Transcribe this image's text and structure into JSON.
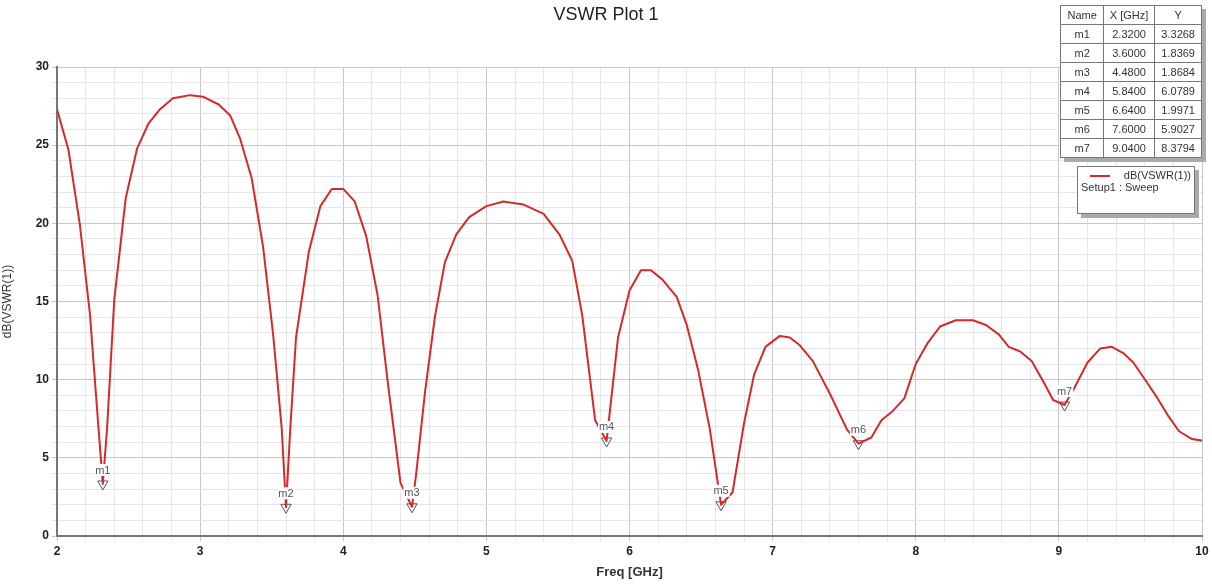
{
  "chart_data": {
    "type": "line",
    "title": "VSWR Plot 1",
    "xlabel": "Freq [GHz]",
    "ylabel": "dB(VSWR(1))",
    "xlim": [
      2,
      10
    ],
    "xticks": [
      2,
      {
        "value": 2.2,
        "label": null
      },
      {
        "value": 2.4,
        "label": null
      },
      {
        "value": 2.6,
        "label": null
      },
      {
        "value": 2.8,
        "label": null
      },
      3,
      {
        "value": 3.2,
        "label": null
      },
      {
        "value": 3.4,
        "label": null
      },
      {
        "value": 3.6,
        "label": null
      },
      {
        "value": 3.8,
        "label": null
      },
      4,
      {
        "value": 4.2,
        "label": null
      },
      {
        "value": 4.4,
        "label": null
      },
      {
        "value": 4.6,
        "label": null
      },
      {
        "value": 4.8,
        "label": null
      },
      5,
      {
        "value": 5.2,
        "label": null
      },
      {
        "value": 5.4,
        "label": null
      },
      {
        "value": 5.6,
        "label": null
      },
      {
        "value": 5.8,
        "label": null
      },
      6,
      {
        "value": 6.2,
        "label": null
      },
      {
        "value": 6.4,
        "label": null
      },
      {
        "value": 6.6,
        "label": null
      },
      {
        "value": 6.8,
        "label": null
      },
      7,
      {
        "value": 7.2,
        "label": null
      },
      {
        "value": 7.4,
        "label": null
      },
      {
        "value": 7.6,
        "label": null
      },
      {
        "value": 7.8,
        "label": null
      },
      8,
      {
        "value": 8.2,
        "label": null
      },
      {
        "value": 8.4,
        "label": null
      },
      {
        "value": 8.6,
        "label": null
      },
      {
        "value": 8.8,
        "label": null
      },
      9,
      {
        "value": 9.2,
        "label": null
      },
      {
        "value": 9.4,
        "label": null
      },
      {
        "value": 9.6,
        "label": null
      },
      {
        "value": 9.8,
        "label": null
      },
      10
    ],
    "ylim": [
      0,
      30
    ],
    "yticks": [
      0,
      {
        "value": 1,
        "label": null
      },
      {
        "value": 2,
        "label": null
      },
      {
        "value": 3,
        "label": null
      },
      {
        "value": 4,
        "label": null
      },
      5,
      {
        "value": 6,
        "label": null
      },
      {
        "value": 7,
        "label": null
      },
      {
        "value": 8,
        "label": null
      },
      {
        "value": 9,
        "label": null
      },
      10,
      {
        "value": 11,
        "label": null
      },
      {
        "value": 12,
        "label": null
      },
      {
        "value": 13,
        "label": null
      },
      {
        "value": 14,
        "label": null
      },
      15,
      {
        "value": 16,
        "label": null
      },
      {
        "value": 17,
        "label": null
      },
      {
        "value": 18,
        "label": null
      },
      {
        "value": 19,
        "label": null
      },
      20,
      {
        "value": 21,
        "label": null
      },
      {
        "value": 22,
        "label": null
      },
      {
        "value": 23,
        "label": null
      },
      {
        "value": 24,
        "label": null
      },
      25,
      {
        "value": 26,
        "label": null
      },
      {
        "value": 27,
        "label": null
      },
      {
        "value": 28,
        "label": null
      },
      {
        "value": 29,
        "label": null
      },
      30
    ],
    "grid": true,
    "legend": "top right",
    "marker": "none",
    "line_style": "solid",
    "series": [
      {
        "name": "dB(VSWR(1))",
        "color": "#d42a2a",
        "x": [
          2,
          2.08,
          2.16,
          2.23,
          2.29,
          2.32,
          2.35,
          2.4,
          2.48,
          2.56,
          2.64,
          2.72,
          2.81,
          2.93,
          3.02,
          3.13,
          3.21,
          3.28,
          3.36,
          3.44,
          3.51,
          3.57,
          3.6,
          3.63,
          3.67,
          3.76,
          3.84,
          3.92,
          4,
          4.08,
          4.16,
          4.24,
          4.31,
          4.4,
          4.48,
          4.51,
          4.57,
          4.64,
          4.71,
          4.79,
          4.88,
          5,
          5.12,
          5.26,
          5.4,
          5.51,
          5.6,
          5.67,
          5.76,
          5.84,
          5.92,
          6,
          6.08,
          6.15,
          6.23,
          6.33,
          6.4,
          6.48,
          6.56,
          6.64,
          6.72,
          6.8,
          6.87,
          6.95,
          7.05,
          7.12,
          7.19,
          7.28,
          7.4,
          7.52,
          7.6,
          7.69,
          7.76,
          7.84,
          7.92,
          8,
          8.08,
          8.17,
          8.28,
          8.4,
          8.49,
          8.58,
          8.65,
          8.73,
          8.81,
          8.89,
          8.96,
          9.04,
          9.11,
          9.2,
          9.29,
          9.37,
          9.45,
          9.52,
          9.61,
          9.69,
          9.77,
          9.84,
          9.93,
          10
        ],
        "values": [
          27.3,
          24.7,
          19.9,
          14.2,
          6.9,
          3.3268,
          6.9,
          15.1,
          21.6,
          24.8,
          26.4,
          27.3,
          28,
          28.2,
          28.1,
          27.6,
          26.9,
          25.4,
          22.9,
          18.5,
          12.9,
          6.9,
          1.8369,
          6.9,
          12.7,
          18.2,
          21.1,
          22.2,
          22.2,
          21.4,
          19.2,
          15.4,
          9.9,
          3.4,
          1.8684,
          4,
          9.1,
          14,
          17.5,
          19.3,
          20.4,
          21.1,
          21.4,
          21.2,
          20.6,
          19.3,
          17.6,
          14.1,
          7.4,
          6.0789,
          12.7,
          15.7,
          17,
          17,
          16.4,
          15.3,
          13.5,
          10.6,
          6.9,
          1.9971,
          2.8,
          7.2,
          10.3,
          12.1,
          12.8,
          12.7,
          12.2,
          11.2,
          9.1,
          6.8,
          5.9027,
          6.3,
          7.4,
          8,
          8.8,
          11,
          12.3,
          13.4,
          13.8,
          13.8,
          13.5,
          12.9,
          12.1,
          11.8,
          11.2,
          9.9,
          8.7,
          8.3794,
          9.5,
          11.1,
          12,
          12.1,
          11.7,
          11.1,
          9.9,
          8.8,
          7.6,
          6.7,
          6.2,
          6.1
        ]
      },
      {
        "type": "scatter",
        "color": "#555555",
        "marker": "triangle",
        "x": [
          2.32,
          3.6,
          4.48,
          5.84,
          6.64,
          7.6,
          9.04
        ],
        "values": [
          3.3268,
          1.8369,
          1.8684,
          6.0789,
          1.9971,
          5.9027,
          8.3794
        ],
        "value_labels": [
          "m1",
          "m2",
          "m3",
          "m4",
          "m5",
          "m6",
          "m7"
        ]
      }
    ],
    "annotations": [
      "Setup1 : Sweep",
      "Name",
      "X [GHz]",
      "Y",
      "m1",
      "2.3200",
      "3.3268",
      "m2",
      "3.6000",
      "1.8369",
      "m3",
      "4.4800",
      "1.8684",
      "m4",
      "5.8400",
      "6.0789",
      "m5",
      "6.6400",
      "1.9971",
      "m6",
      "7.6000",
      "5.9027",
      "m7",
      "9.0400",
      "8.3794"
    ]
  }
}
